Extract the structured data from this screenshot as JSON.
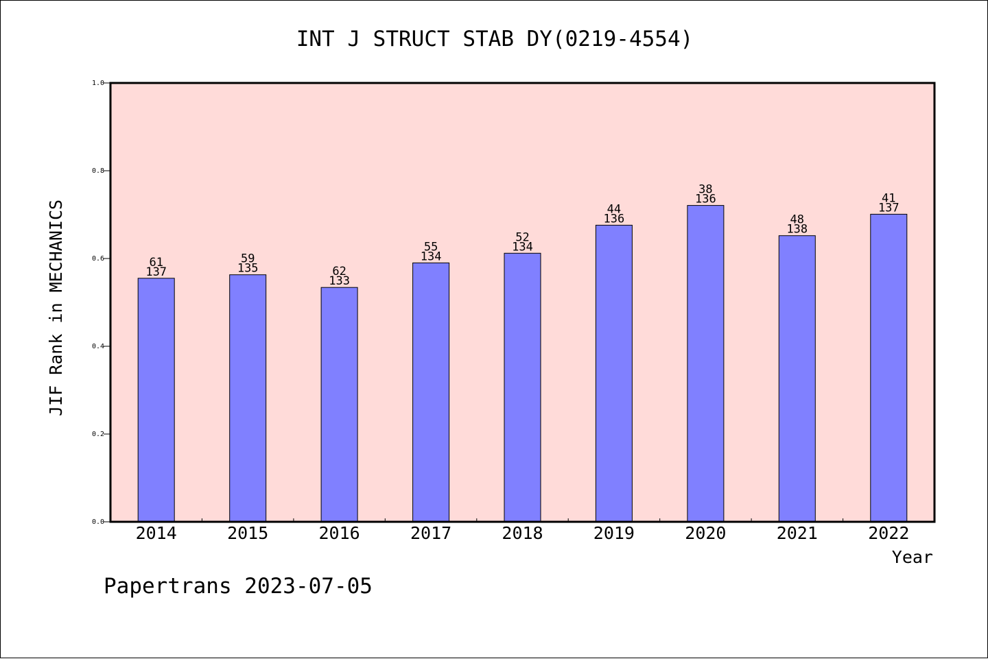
{
  "chart_data": {
    "type": "bar",
    "title": "INT J STRUCT STAB DY(0219-4554)",
    "xlabel": "Year",
    "ylabel": "JIF Rank in MECHANICS",
    "ylim": [
      0,
      1.0
    ],
    "yticks": [
      "0.0",
      "0.2",
      "0.4",
      "0.6",
      "0.8",
      "1.0"
    ],
    "grid": false,
    "categories": [
      "2014",
      "2015",
      "2016",
      "2017",
      "2018",
      "2019",
      "2020",
      "2021",
      "2022"
    ],
    "values": [
      0.555,
      0.563,
      0.534,
      0.59,
      0.612,
      0.676,
      0.721,
      0.652,
      0.701
    ],
    "labels_top": [
      "61",
      "59",
      "62",
      "55",
      "52",
      "44",
      "38",
      "48",
      "41"
    ],
    "labels_bottom": [
      "137",
      "135",
      "133",
      "134",
      "134",
      "136",
      "136",
      "138",
      "137"
    ],
    "footer": "Papertrans 2023-07-05",
    "colors": {
      "plot_background": "#ffdbd9",
      "bar_fill": "#8080ff",
      "bar_stroke": "#000000"
    }
  }
}
